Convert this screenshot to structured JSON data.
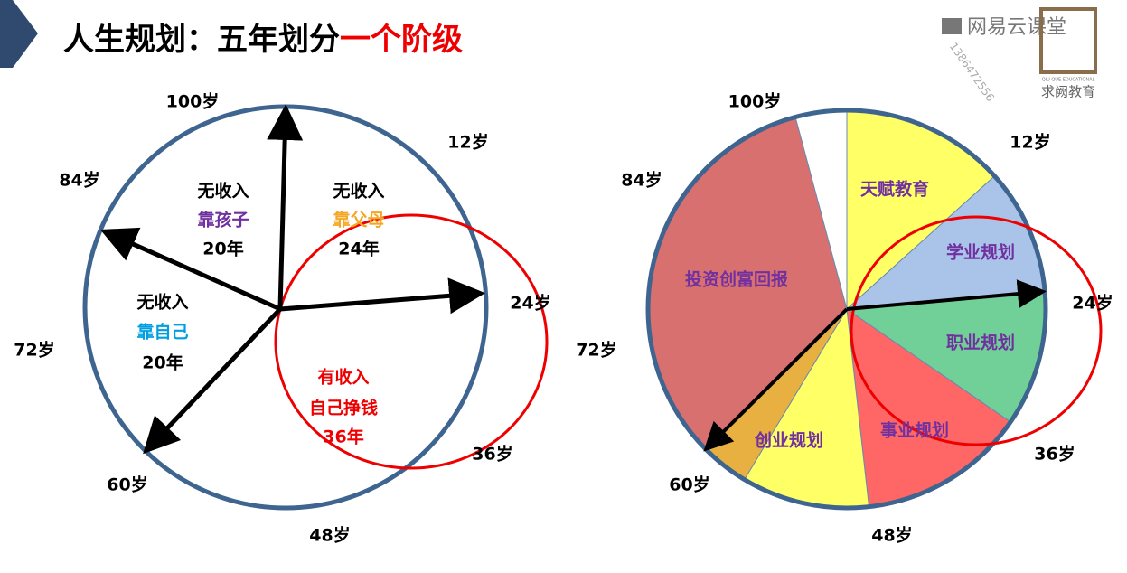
{
  "header": {
    "title_black": "人生规划：五年划分",
    "title_red": "一个阶级"
  },
  "watermark": {
    "brand": "网易云课堂",
    "phone": "1386472556",
    "logo_en": "QIU QUE EDUCATIONAL",
    "logo_cn": "求阙教育"
  },
  "left_diagram": {
    "age_labels": [
      "100岁",
      "12岁",
      "24岁",
      "36岁",
      "48岁",
      "60岁",
      "72岁",
      "84岁"
    ],
    "sectors": [
      {
        "lines": [
          "无收入",
          "靠父母",
          "24年"
        ]
      },
      {
        "lines": [
          "无收入",
          "靠孩子",
          "20年"
        ]
      },
      {
        "lines": [
          "无收入",
          "靠自己",
          "20年"
        ]
      },
      {
        "lines": [
          "有收入",
          "自己挣钱",
          "36年"
        ]
      }
    ]
  },
  "right_diagram": {
    "age_labels": [
      "100岁",
      "12岁",
      "24岁",
      "36岁",
      "48岁",
      "60岁",
      "72岁",
      "84岁"
    ],
    "segments": [
      "天赋教育",
      "学业规划",
      "职业规划",
      "事业规划",
      "创业规划",
      "投资创富回报"
    ]
  }
}
